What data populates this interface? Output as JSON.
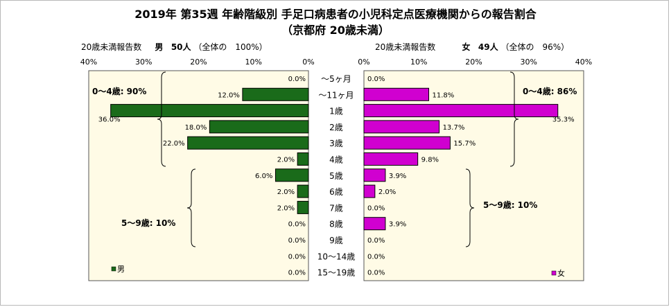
{
  "title": "2019年 第35週 年齢階級別 手足口病患者の小児科定点医療機関からの報告割合",
  "subtitle": "（京都府 20歳未満）",
  "left_header": {
    "label": "20歳未満報告数",
    "sex": "男",
    "count": "50人",
    "share": "（全体の　100%）"
  },
  "right_header": {
    "label": "20歳未満報告数",
    "sex": "女",
    "count": "49人",
    "share": "（全体の　96%）"
  },
  "chart_data": {
    "type": "bar",
    "orientation": "horizontal-pyramid",
    "categories": [
      "～5ヶ月",
      "～11ヶ月",
      "1歳",
      "2歳",
      "3歳",
      "4歳",
      "5歳",
      "6歳",
      "7歳",
      "8歳",
      "9歳",
      "10～14歳",
      "15～19歳"
    ],
    "series": [
      {
        "name": "男",
        "color": "#1a6b1a",
        "values": [
          0.0,
          12.0,
          36.0,
          18.0,
          22.0,
          2.0,
          6.0,
          2.0,
          2.0,
          0.0,
          0.0,
          0.0,
          0.0
        ],
        "labels": [
          "0.0%",
          "12.0%",
          "36.0%",
          "18.0%",
          "22.0%",
          "2.0%",
          "6.0%",
          "2.0%",
          "2.0%",
          "0.0%",
          "0.0%",
          "0.0%",
          "0.0%"
        ]
      },
      {
        "name": "女",
        "color": "#d000d0",
        "values": [
          0.0,
          11.8,
          35.3,
          13.7,
          15.7,
          9.8,
          3.9,
          2.0,
          0.0,
          3.9,
          0.0,
          0.0,
          0.0
        ],
        "labels": [
          "0.0%",
          "11.8%",
          "35.3%",
          "13.7%",
          "15.7%",
          "9.8%",
          "3.9%",
          "2.0%",
          "0.0%",
          "3.9%",
          "0.0%",
          "0.0%",
          "0.0%"
        ]
      }
    ],
    "xlim": [
      0,
      40
    ],
    "x_ticks_left": [
      "40%",
      "30%",
      "20%",
      "10%",
      "0%"
    ],
    "x_ticks_right": [
      "0%",
      "10%",
      "20%",
      "30%",
      "40%"
    ],
    "annotations": {
      "left": [
        {
          "text": "0～4歳: 90%",
          "from": 0,
          "to": 5
        },
        {
          "text": "5～9歳: 10%",
          "from": 6,
          "to": 10
        }
      ],
      "right": [
        {
          "text": "0～4歳: 86%",
          "from": 0,
          "to": 5
        },
        {
          "text": "5～9歳: 10%",
          "from": 6,
          "to": 10
        }
      ]
    },
    "legend": {
      "left": "男",
      "right": "女",
      "placement": "bottom-left / bottom-right"
    }
  }
}
